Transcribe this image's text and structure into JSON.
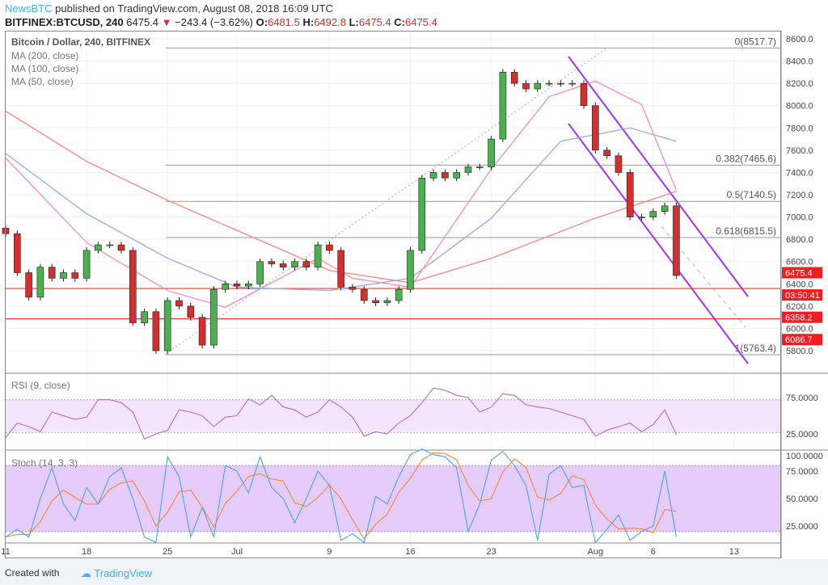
{
  "header": {
    "publisher": "NewsBTC",
    "published_text": "published on TradingView.com, August 08, 2018 16:09 UTC",
    "symbol": "BITFINEX:BTCUSD, 240",
    "last": "6475.4",
    "change": "−243.4 (−3.62%)",
    "o_label": "O:",
    "o": "6481.5",
    "h_label": "H:",
    "h": "6492.8",
    "l_label": "L:",
    "l": "6475.4",
    "c_label": "C:",
    "c": "6475.4"
  },
  "legend": {
    "title": "Bitcoin / Dollar, 240, BITFINEX",
    "ma200": "MA (200, close)",
    "ma100": "MA (100, close)",
    "ma50": "MA (50, close)",
    "rsi": "RSI (9, close)",
    "stoch": "Stoch (14, 3, 3)"
  },
  "price_labels": {
    "last": "6475.4",
    "countdown": "03:50:41",
    "level1": "6358.2",
    "level2": "6086.7"
  },
  "fib": [
    {
      "label": "0(8517.7)",
      "value": 8517.7
    },
    {
      "label": "0.382(7465.6)",
      "value": 7465.6
    },
    {
      "label": "0.5(7140.5)",
      "value": 7140.5
    },
    {
      "label": "0.618(6815.5)",
      "value": 6815.5
    },
    {
      "label": "1(5763.4)",
      "value": 5763.4
    }
  ],
  "footer": {
    "created": "Created with",
    "brand": "TradingView"
  },
  "colors": {
    "up": "#4caf50",
    "down": "#d32f2f",
    "ma200": "#f28b82",
    "ma100": "#9fa8da",
    "ma50": "#f48fb1",
    "channel": "#a335ee",
    "rsi": "#b36bd4",
    "stochK": "#4aa3f0",
    "stochD": "#f4863a"
  },
  "chart_data": [
    {
      "type": "candlestick",
      "title": "Bitcoin / Dollar, 240, BITFINEX",
      "ylim": [
        5700,
        8650
      ],
      "yticks": [
        "5800.0",
        "6000.0",
        "6200.0",
        "6400.0",
        "6600.0",
        "6800.0",
        "7000.0",
        "7200.0",
        "7400.0",
        "7600.0",
        "7800.0",
        "8000.0",
        "8200.0",
        "8400.0",
        "8600.0"
      ],
      "xticks": [
        {
          "label": "11",
          "day": 0
        },
        {
          "label": "18",
          "day": 7
        },
        {
          "label": "25",
          "day": 14
        },
        {
          "label": "Jul",
          "day": 20
        },
        {
          "label": "9",
          "day": 28
        },
        {
          "label": "16",
          "day": 35
        },
        {
          "label": "23",
          "day": 42
        },
        {
          "label": "Aug",
          "day": 51
        },
        {
          "label": "6",
          "day": 56
        },
        {
          "label": "13",
          "day": 63
        }
      ],
      "start": "2018-06-11",
      "close": [
        6850,
        6500,
        6280,
        6550,
        6450,
        6500,
        6450,
        6700,
        6750,
        6750,
        6700,
        6050,
        6150,
        5800,
        6250,
        6200,
        6100,
        5850,
        6350,
        6400,
        6380,
        6400,
        6600,
        6580,
        6550,
        6600,
        6550,
        6750,
        6700,
        6370,
        6350,
        6250,
        6230,
        6250,
        6350,
        6700,
        7350,
        7400,
        7350,
        7400,
        7450,
        7450,
        7700,
        8300,
        8200,
        8150,
        8200,
        8200,
        8200,
        8200,
        8000,
        7600,
        7550,
        7400,
        7000,
        7000,
        7050,
        7100,
        6475
      ],
      "ma200": [
        [
          "2018-06-11",
          7950
        ],
        [
          "2018-06-18",
          7500
        ],
        [
          "2018-06-25",
          7150
        ],
        [
          "2018-07-01",
          6880
        ],
        [
          "2018-07-09",
          6520
        ],
        [
          "2018-07-16",
          6410
        ],
        [
          "2018-07-23",
          6630
        ],
        [
          "2018-08-01",
          6990
        ],
        [
          "2018-08-08",
          7230
        ]
      ],
      "ma100": [
        [
          "2018-06-11",
          7570
        ],
        [
          "2018-06-18",
          7030
        ],
        [
          "2018-06-25",
          6630
        ],
        [
          "2018-07-01",
          6370
        ],
        [
          "2018-07-09",
          6340
        ],
        [
          "2018-07-16",
          6450
        ],
        [
          "2018-07-23",
          6990
        ],
        [
          "2018-07-29",
          7680
        ],
        [
          "2018-08-04",
          7800
        ],
        [
          "2018-08-08",
          7680
        ]
      ],
      "ma50": [
        [
          "2018-06-11",
          7530
        ],
        [
          "2018-06-18",
          6770
        ],
        [
          "2018-06-25",
          6340
        ],
        [
          "2018-06-30",
          6190
        ],
        [
          "2018-07-08",
          6630
        ],
        [
          "2018-07-11",
          6450
        ],
        [
          "2018-07-16",
          6370
        ],
        [
          "2018-07-23",
          7430
        ],
        [
          "2018-07-28",
          8080
        ],
        [
          "2018-08-01",
          8220
        ],
        [
          "2018-08-05",
          8010
        ],
        [
          "2018-08-08",
          7240
        ]
      ],
      "horizontal_levels": [
        6358.2,
        6086.7
      ]
    },
    {
      "type": "line",
      "title": "RSI (9, close)",
      "ylim": [
        0,
        100
      ],
      "yticks": [
        "25.0000",
        "75.0000"
      ],
      "band": [
        30,
        70
      ],
      "values": [
        20,
        40,
        35,
        28,
        55,
        50,
        45,
        48,
        72,
        72,
        68,
        55,
        18,
        25,
        30,
        58,
        55,
        50,
        35,
        48,
        50,
        73,
        65,
        78,
        62,
        58,
        48,
        55,
        72,
        62,
        48,
        22,
        28,
        25,
        40,
        50,
        68,
        88,
        85,
        78,
        75,
        55,
        62,
        80,
        78,
        65,
        62,
        60,
        55,
        50,
        45,
        22,
        30,
        35,
        40,
        28,
        38,
        58,
        24
      ]
    },
    {
      "type": "line",
      "title": "Stoch (14, 3, 3)",
      "ylim": [
        0,
        100
      ],
      "yticks": [
        "25.0000",
        "50.0000",
        "75.0000",
        "100.0000"
      ],
      "band": [
        20,
        80
      ],
      "values": [
        15,
        22,
        15,
        50,
        78,
        45,
        30,
        60,
        45,
        70,
        78,
        50,
        15,
        10,
        88,
        70,
        15,
        42,
        15,
        80,
        75,
        55,
        88,
        60,
        50,
        28,
        50,
        75,
        62,
        12,
        18,
        10,
        52,
        45,
        70,
        90,
        95,
        90,
        88,
        78,
        20,
        45,
        85,
        93,
        80,
        62,
        12,
        72,
        80,
        60,
        62,
        10,
        22,
        35,
        12,
        20,
        25,
        75,
        15
      ]
    }
  ]
}
